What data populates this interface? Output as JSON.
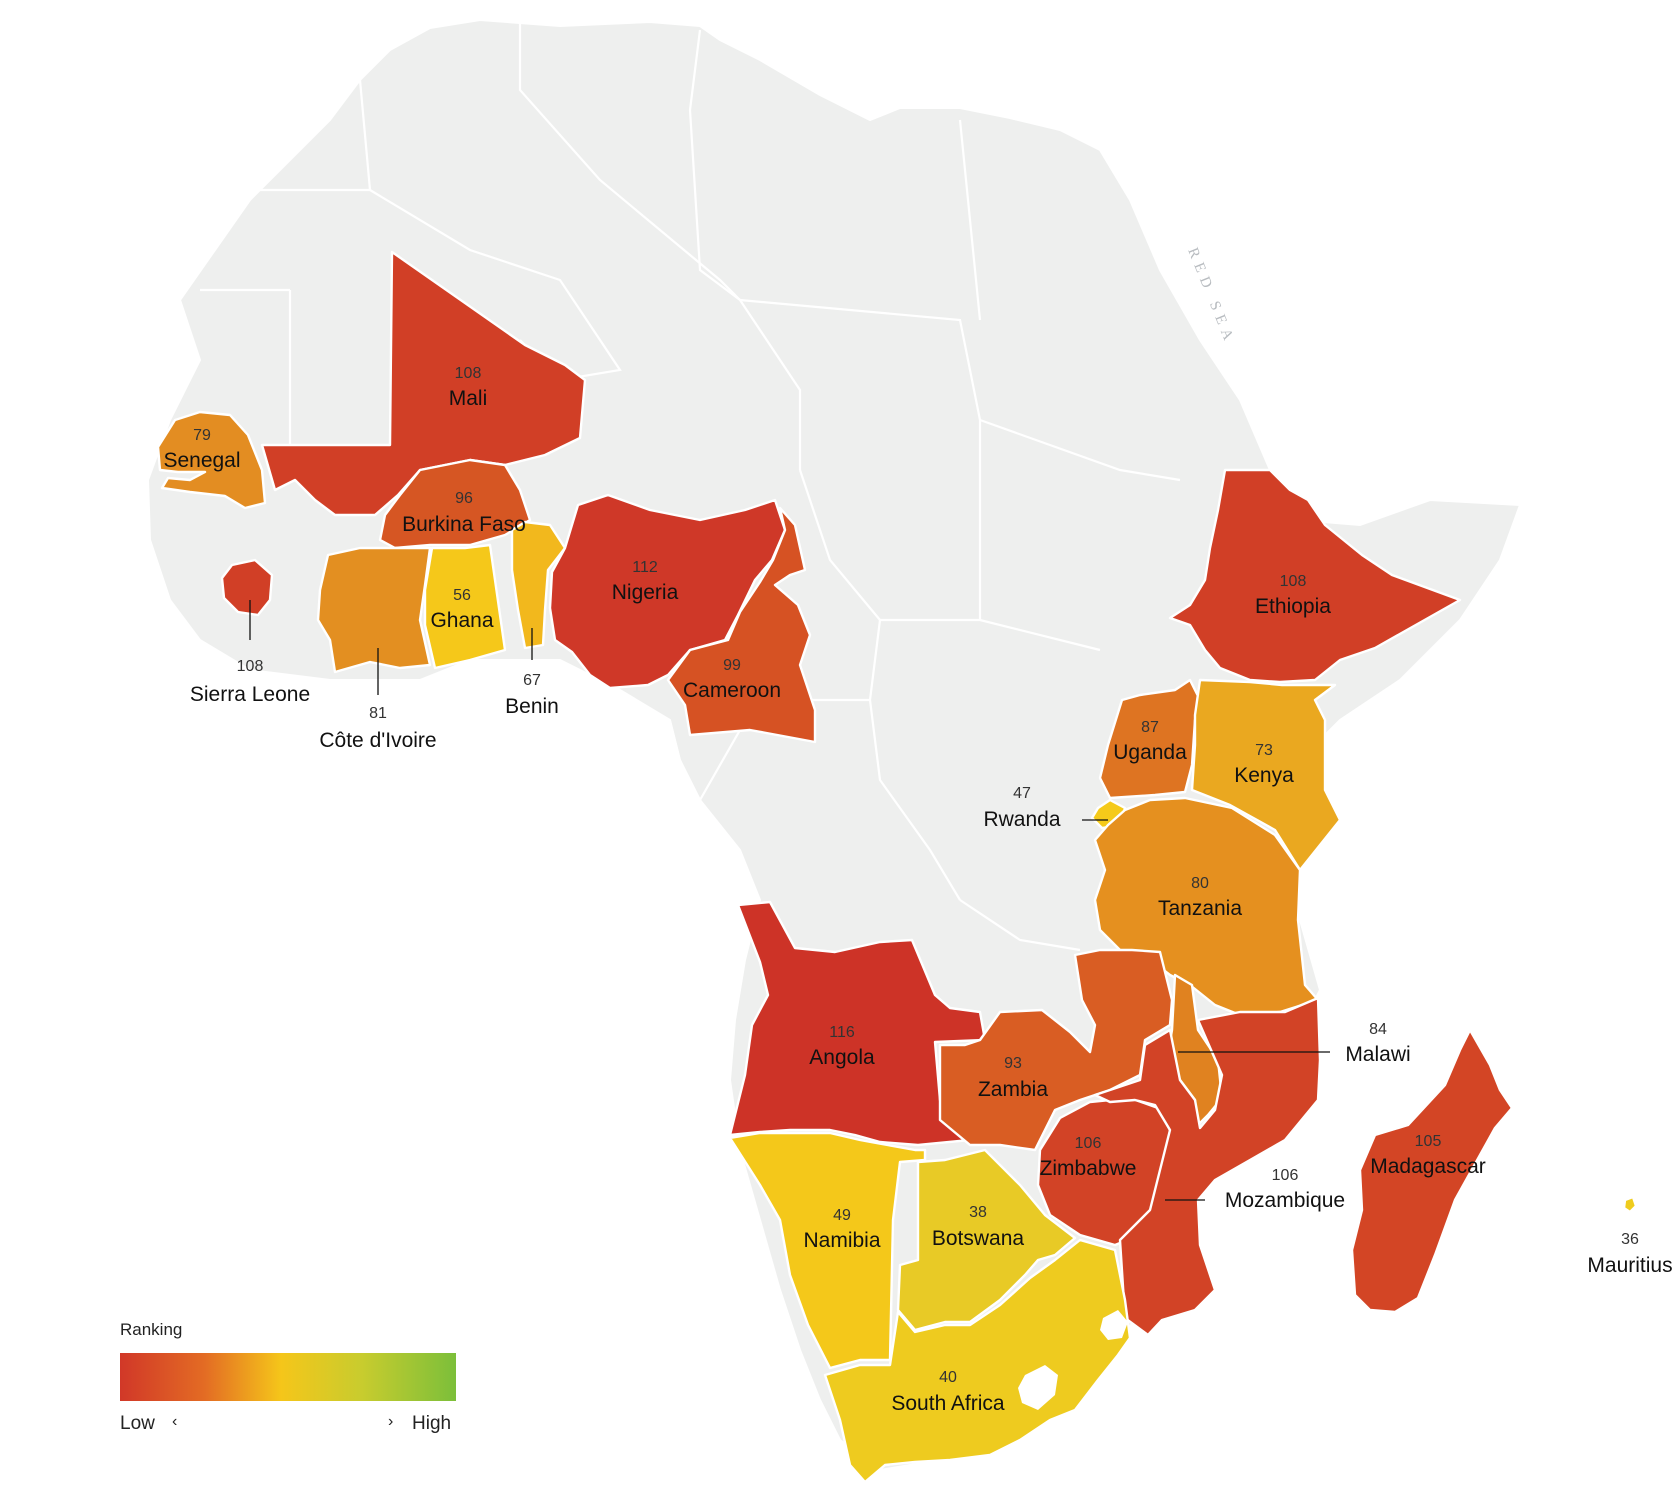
{
  "map": {
    "sea_label": "RED SEA",
    "legend": {
      "title": "Ranking",
      "low_label": "Low",
      "high_label": "High",
      "arrow_left": "‹",
      "arrow_right": "›",
      "colors": [
        "#d13828",
        "#e36b24",
        "#f5c61a",
        "#7cbf3a"
      ]
    }
  },
  "countries": [
    {
      "id": "mali",
      "name": "Mali",
      "rank": "108",
      "color": "#d13f26"
    },
    {
      "id": "senegal",
      "name": "Senegal",
      "rank": "79",
      "color": "#e38d22"
    },
    {
      "id": "burkina",
      "name": "Burkina Faso",
      "rank": "96",
      "color": "#d65623"
    },
    {
      "id": "sierra",
      "name": "Sierra Leone",
      "rank": "108",
      "color": "#d13f26"
    },
    {
      "id": "ivoire",
      "name": "Côte d'Ivoire",
      "rank": "81",
      "color": "#e38f21"
    },
    {
      "id": "ghana",
      "name": "Ghana",
      "rank": "56",
      "color": "#f5c81a"
    },
    {
      "id": "benin",
      "name": "Benin",
      "rank": "67",
      "color": "#f2b81d"
    },
    {
      "id": "nigeria",
      "name": "Nigeria",
      "rank": "112",
      "color": "#cf3828"
    },
    {
      "id": "cameroon",
      "name": "Cameroon",
      "rank": "99",
      "color": "#d65223"
    },
    {
      "id": "ethiopia",
      "name": "Ethiopia",
      "rank": "108",
      "color": "#d13f26"
    },
    {
      "id": "uganda",
      "name": "Uganda",
      "rank": "87",
      "color": "#de7422"
    },
    {
      "id": "kenya",
      "name": "Kenya",
      "rank": "73",
      "color": "#eaa820"
    },
    {
      "id": "rwanda",
      "name": "Rwanda",
      "rank": "47",
      "color": "#f5ca1a"
    },
    {
      "id": "tanzania",
      "name": "Tanzania",
      "rank": "80",
      "color": "#e5901f"
    },
    {
      "id": "angola",
      "name": "Angola",
      "rank": "116",
      "color": "#cd3327"
    },
    {
      "id": "zambia",
      "name": "Zambia",
      "rank": "93",
      "color": "#d95d23"
    },
    {
      "id": "malawi",
      "name": "Malawi",
      "rank": "84",
      "color": "#e08220"
    },
    {
      "id": "zimbabwe",
      "name": "Zimbabwe",
      "rank": "106",
      "color": "#d24326"
    },
    {
      "id": "mozambique",
      "name": "Mozambique",
      "rank": "106",
      "color": "#d24326"
    },
    {
      "id": "madagascar",
      "name": "Madagascar",
      "rank": "105",
      "color": "#d34525"
    },
    {
      "id": "namibia",
      "name": "Namibia",
      "rank": "49",
      "color": "#f4c81a"
    },
    {
      "id": "botswana",
      "name": "Botswana",
      "rank": "38",
      "color": "#e8ca26"
    },
    {
      "id": "southafrica",
      "name": "South Africa",
      "rank": "40",
      "color": "#eecb1f"
    },
    {
      "id": "mauritius",
      "name": "Mauritius",
      "rank": "36",
      "color": "#efcc1d"
    }
  ]
}
